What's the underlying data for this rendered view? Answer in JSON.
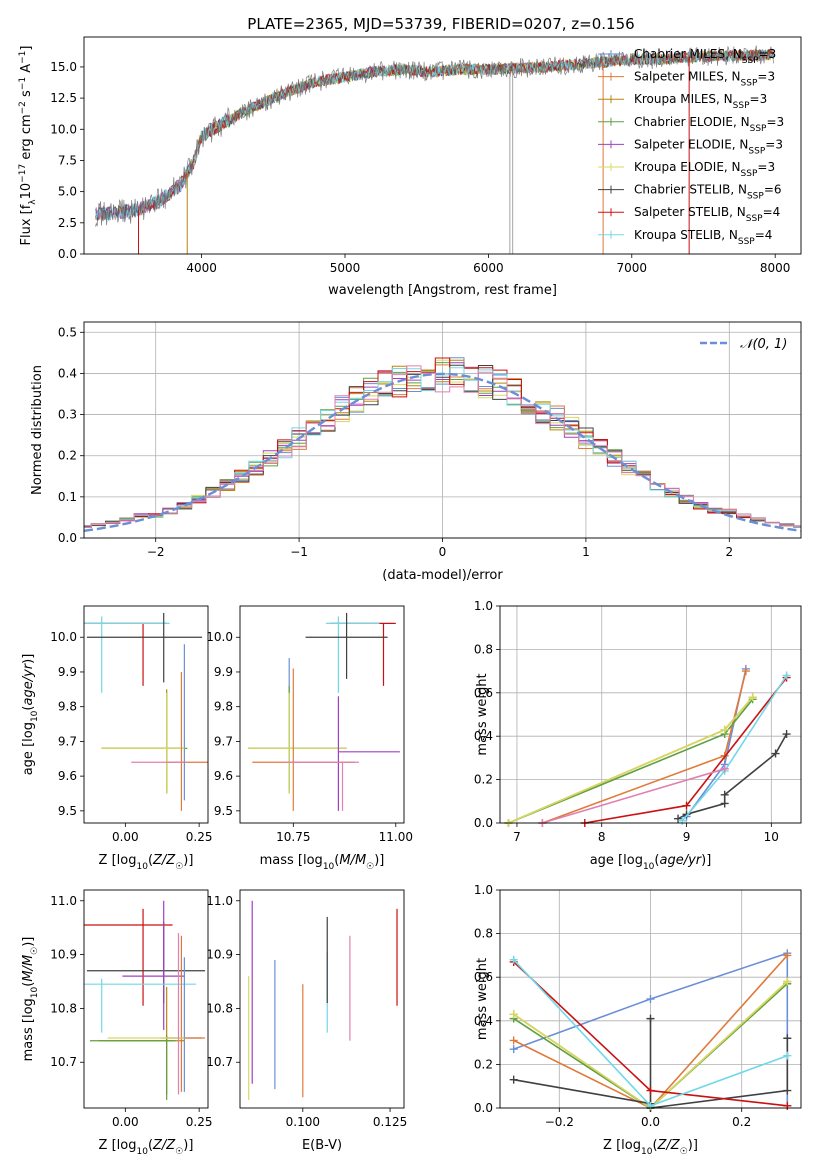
{
  "title": "PLATE=2365, MJD=53739, FIBERID=0207, z=0.156",
  "colors": {
    "Chabrier MILES": "#6a8fd8",
    "Salpeter MILES": "#e07a3a",
    "Kroupa MILES": "#b8860b",
    "Chabrier ELODIE": "#5fa040",
    "Salpeter ELODIE": "#a040c0",
    "Kroupa ELODIE": "#d8d860",
    "Chabrier STELIB": "#404040",
    "Salpeter STELIB": "#cc1010",
    "Kroupa STELIB": "#70d8e8",
    "pink": "#e080b0",
    "data": "#707070"
  },
  "chart_data": [
    {
      "type": "line",
      "panel": "spectrum",
      "title": "PLATE=2365, MJD=53739, FIBERID=0207, z=0.156",
      "xlabel": "wavelength [Angstrom, rest frame]",
      "ylabel": "Flux [f",
      "ylabel_full": "Flux [fλ10⁻¹⁷ erg cm⁻² s⁻¹ A⁻¹]",
      "xlim": [
        3180,
        8180
      ],
      "ylim": [
        0,
        17.4
      ],
      "xticks": [
        4000,
        5000,
        6000,
        7000,
        8000
      ],
      "yticks": [
        0.0,
        2.5,
        5.0,
        7.5,
        10.0,
        12.5,
        15.0
      ],
      "ytick_labels": [
        "0.0",
        "2.5",
        "5.0",
        "7.5",
        "10.0",
        "12.5",
        "15.0"
      ],
      "legend": "top-right",
      "series": [
        {
          "name": "Chabrier MILES, N",
          "sub": "SSP",
          "suffix": "=3"
        },
        {
          "name": "Salpeter MILES, N",
          "sub": "SSP",
          "suffix": "=3"
        },
        {
          "name": "Kroupa MILES, N",
          "sub": "SSP",
          "suffix": "=3"
        },
        {
          "name": "Chabrier ELODIE, N",
          "sub": "SSP",
          "suffix": "=3"
        },
        {
          "name": "Salpeter ELODIE, N",
          "sub": "SSP",
          "suffix": "=3"
        },
        {
          "name": "Kroupa ELODIE, N",
          "sub": "SSP",
          "suffix": "=3"
        },
        {
          "name": "Chabrier STELIB, N",
          "sub": "SSP",
          "suffix": "=6"
        },
        {
          "name": "Salpeter STELIB, N",
          "sub": "SSP",
          "suffix": "=4"
        },
        {
          "name": "Kroupa STELIB, N",
          "sub": "SSP",
          "suffix": "=4"
        }
      ],
      "continuum": [
        [
          3250,
          3.2
        ],
        [
          3400,
          3.3
        ],
        [
          3550,
          3.5
        ],
        [
          3700,
          4.2
        ],
        [
          3850,
          5.5
        ],
        [
          3950,
          7.5
        ],
        [
          4000,
          9.5
        ],
        [
          4200,
          10.8
        ],
        [
          4400,
          12.0
        ],
        [
          4600,
          13.0
        ],
        [
          4800,
          13.8
        ],
        [
          5000,
          14.2
        ],
        [
          5200,
          14.6
        ],
        [
          5400,
          14.8
        ],
        [
          5600,
          14.6
        ],
        [
          5800,
          14.8
        ],
        [
          6000,
          14.8
        ],
        [
          6200,
          14.9
        ],
        [
          6400,
          15.0
        ],
        [
          6600,
          15.2
        ],
        [
          6800,
          15.4
        ],
        [
          7000,
          15.6
        ],
        [
          7200,
          15.6
        ],
        [
          7400,
          15.8
        ],
        [
          7600,
          15.9
        ],
        [
          7800,
          15.9
        ],
        [
          7980,
          16.0
        ]
      ]
    },
    {
      "type": "histogram",
      "panel": "residuals",
      "xlabel": "(data-model)/error",
      "ylabel": "Normed distribution",
      "xlim": [
        -2.5,
        2.5
      ],
      "ylim": [
        0,
        0.525
      ],
      "xticks": [
        -2,
        -1,
        0,
        1,
        2
      ],
      "xtick_labels": [
        "−2",
        "−1",
        "0",
        "1",
        "2"
      ],
      "yticks": [
        0.0,
        0.1,
        0.2,
        0.3,
        0.4,
        0.5
      ],
      "ytick_labels": [
        "0.0",
        "0.1",
        "0.2",
        "0.3",
        "0.4",
        "0.5"
      ],
      "legend": "top-right",
      "legend_label": "𝒩(0, 1)",
      "bin_width": 0.1,
      "grid": true
    },
    {
      "type": "scatter",
      "panel": "age-vs-Z",
      "xlabel": "Z [log",
      "xlabel_full": "Z [log10(Z/Z☉)]",
      "ylabel": "age  [log10(age/yr)]",
      "xlim": [
        -0.14,
        0.28
      ],
      "ylim": [
        9.465,
        10.09
      ],
      "xticks": [
        0.0,
        0.25
      ],
      "xtick_labels": [
        "0.00",
        "0.25"
      ],
      "yticks": [
        9.5,
        9.6,
        9.7,
        9.8,
        9.9,
        10.0
      ],
      "ytick_labels": [
        "9.5",
        "9.6",
        "9.7",
        "9.8",
        "9.9",
        "10.0"
      ]
    },
    {
      "type": "scatter",
      "panel": "age-vs-mass",
      "xlabel": "mass [log10(M/M☉)]",
      "xlim": [
        10.62,
        11.02
      ],
      "ylim": [
        9.465,
        10.09
      ],
      "xticks": [
        10.75,
        11.0
      ],
      "xtick_labels": [
        "10.75",
        "11.00"
      ],
      "yticks": [
        9.5,
        9.6,
        9.7,
        9.8,
        9.9,
        10.0
      ],
      "ytick_labels": [
        "9.5",
        "9.6",
        "9.7",
        "9.8",
        "9.9",
        "10.0"
      ]
    },
    {
      "type": "line",
      "panel": "mass-weight-vs-age",
      "xlabel": "age  [log10(age/yr)]",
      "ylabel": "mass weight",
      "xlim": [
        6.8,
        10.35
      ],
      "ylim": [
        0,
        1.0
      ],
      "xticks": [
        7,
        8,
        9,
        10
      ],
      "yticks": [
        0.0,
        0.2,
        0.4,
        0.6,
        0.8,
        1.0
      ],
      "ytick_labels": [
        "0.0",
        "0.2",
        "0.4",
        "0.6",
        "0.8",
        "1.0"
      ],
      "grid": true,
      "series": [
        {
          "key": "Chabrier MILES",
          "x": [
            9.0,
            9.45,
            9.7
          ],
          "y": [
            0.03,
            0.27,
            0.71
          ]
        },
        {
          "key": "Salpeter MILES",
          "x": [
            7.3,
            9.45,
            9.7
          ],
          "y": [
            0.0,
            0.31,
            0.7
          ]
        },
        {
          "key": "Kroupa MILES",
          "x": [
            6.9,
            9.45,
            9.78
          ],
          "y": [
            0.0,
            0.43,
            0.58
          ]
        },
        {
          "key": "Chabrier ELODIE",
          "x": [
            6.9,
            9.45,
            9.78
          ],
          "y": [
            0.0,
            0.41,
            0.57
          ]
        },
        {
          "key": "Kroupa ELODIE",
          "x": [
            6.9,
            9.45,
            9.78
          ],
          "y": [
            0.0,
            0.43,
            0.58
          ]
        },
        {
          "key": "Chabrier STELIB",
          "x": [
            8.9,
            9.0,
            9.45,
            9.45,
            10.05,
            10.18
          ],
          "y": [
            0.02,
            0.04,
            0.09,
            0.13,
            0.32,
            0.41
          ]
        },
        {
          "key": "Salpeter STELIB",
          "x": [
            7.8,
            9.0,
            10.18
          ],
          "y": [
            0.0,
            0.08,
            0.67
          ]
        },
        {
          "key": "Kroupa STELIB",
          "x": [
            8.95,
            9.45,
            10.18
          ],
          "y": [
            0.01,
            0.24,
            0.68
          ]
        },
        {
          "key": "pink",
          "x": [
            7.3,
            9.45
          ],
          "y": [
            0.0,
            0.25
          ]
        }
      ]
    },
    {
      "type": "scatter",
      "panel": "mass-vs-Z",
      "xlabel": "Z [log10(Z/Z☉)]",
      "ylabel": "mass [log10(M/M☉)]",
      "xlim": [
        -0.14,
        0.28
      ],
      "ylim": [
        10.615,
        11.02
      ],
      "xticks": [
        0.0,
        0.25
      ],
      "xtick_labels": [
        "0.00",
        "0.25"
      ],
      "yticks": [
        10.7,
        10.8,
        10.9,
        11.0
      ],
      "ytick_labels": [
        "10.7",
        "10.8",
        "10.9",
        "11.0"
      ]
    },
    {
      "type": "scatter",
      "panel": "mass-vs-EBV",
      "xlabel": "E(B-V)",
      "xlim": [
        0.082,
        0.129
      ],
      "ylim": [
        10.615,
        11.02
      ],
      "xticks": [
        0.1,
        0.125
      ],
      "xtick_labels": [
        "0.100",
        "0.125"
      ],
      "yticks": [
        10.7,
        10.8,
        10.9,
        11.0
      ],
      "ytick_labels": [
        "10.7",
        "10.8",
        "10.9",
        "11.0"
      ]
    },
    {
      "type": "line",
      "panel": "mass-weight-vs-Z",
      "xlabel": "Z [log10(Z/Z☉)]",
      "ylabel": "mass weight",
      "xlim": [
        -0.33,
        0.33
      ],
      "ylim": [
        0,
        1.0
      ],
      "xticks": [
        -0.2,
        0.0,
        0.2
      ],
      "xtick_labels": [
        "−0.2",
        "0.0",
        "0.2"
      ],
      "yticks": [
        0.0,
        0.2,
        0.4,
        0.6,
        0.8,
        1.0
      ],
      "ytick_labels": [
        "0.0",
        "0.2",
        "0.4",
        "0.6",
        "0.8",
        "1.0"
      ],
      "grid": true,
      "series": [
        {
          "key": "Chabrier MILES",
          "x": [
            -0.3,
            0.0,
            0.3,
            0.3
          ],
          "y": [
            0.27,
            0.5,
            0.71,
            0.01
          ]
        },
        {
          "key": "Salpeter MILES",
          "x": [
            -0.3,
            0.0,
            0.3
          ],
          "y": [
            0.31,
            0.0,
            0.7
          ]
        },
        {
          "key": "Kroupa MILES",
          "x": [
            -0.3,
            0.0,
            0.3
          ],
          "y": [
            0.43,
            0.0,
            0.58
          ]
        },
        {
          "key": "Chabrier ELODIE",
          "x": [
            -0.3,
            0.0,
            0.3
          ],
          "y": [
            0.41,
            0.0,
            0.57
          ]
        },
        {
          "key": "Kroupa ELODIE",
          "x": [
            -0.3,
            0.0,
            0.3
          ],
          "y": [
            0.43,
            0.0,
            0.58
          ]
        },
        {
          "key": "Chabrier STELIB",
          "x": [
            -0.3,
            0.0,
            0.0,
            0.0,
            0.3,
            0.3
          ],
          "y": [
            0.13,
            0.02,
            0.41,
            0.0,
            0.08,
            0.32
          ]
        },
        {
          "key": "Salpeter STELIB",
          "x": [
            -0.3,
            0.0,
            0.3
          ],
          "y": [
            0.67,
            0.08,
            0.01
          ]
        },
        {
          "key": "Kroupa STELIB",
          "x": [
            -0.3,
            0.0,
            0.3
          ],
          "y": [
            0.68,
            0.01,
            0.24
          ]
        }
      ]
    }
  ]
}
